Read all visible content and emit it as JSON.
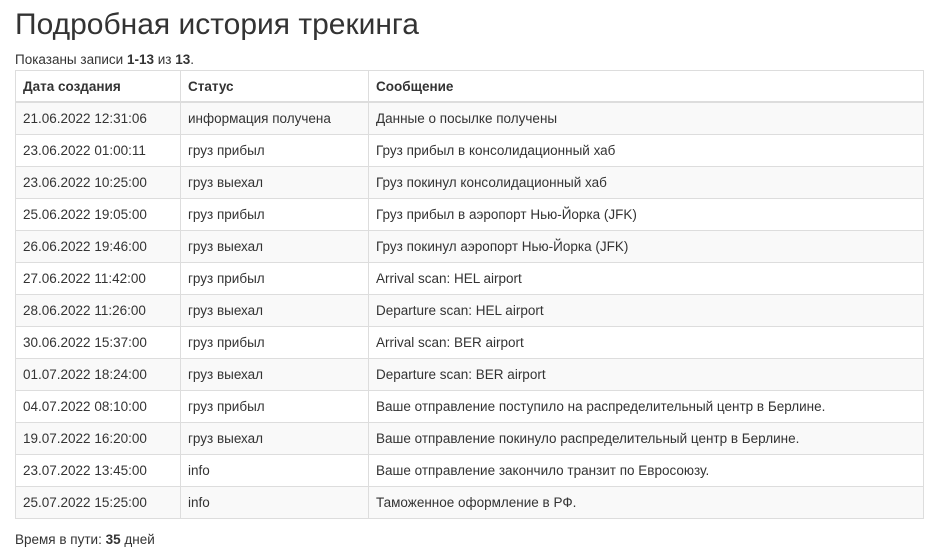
{
  "title": "Подробная история трекинга",
  "summary": {
    "prefix": "Показаны записи ",
    "range": "1-13",
    "of": " из ",
    "total": "13",
    "suffix": "."
  },
  "columns": [
    "Дата создания",
    "Статус",
    "Сообщение"
  ],
  "rows": [
    [
      "21.06.2022 12:31:06",
      "информация получена",
      "Данные о посылке получены"
    ],
    [
      "23.06.2022 01:00:11",
      "груз прибыл",
      "Груз прибыл в консолидационный хаб"
    ],
    [
      "23.06.2022 10:25:00",
      "груз выехал",
      "Груз покинул консолидационный хаб"
    ],
    [
      "25.06.2022 19:05:00",
      "груз прибыл",
      "Груз прибыл в аэропорт Нью-Йорка (JFK)"
    ],
    [
      "26.06.2022 19:46:00",
      "груз выехал",
      "Груз покинул аэропорт Нью-Йорка (JFK)"
    ],
    [
      "27.06.2022 11:42:00",
      "груз прибыл",
      "Arrival scan: HEL airport"
    ],
    [
      "28.06.2022 11:26:00",
      "груз выехал",
      "Departure scan: HEL airport"
    ],
    [
      "30.06.2022 15:37:00",
      "груз прибыл",
      "Arrival scan: BER airport"
    ],
    [
      "01.07.2022 18:24:00",
      "груз выехал",
      "Departure scan: BER airport"
    ],
    [
      "04.07.2022 08:10:00",
      "груз прибыл",
      "Ваше отправление поступило на распределительный центр в Берлине."
    ],
    [
      "19.07.2022 16:20:00",
      "груз выехал",
      "Ваше отправление покинуло распределительный центр в Берлине."
    ],
    [
      "23.07.2022 13:45:00",
      "info",
      "Ваше отправление закончило транзит по Евросоюзу."
    ],
    [
      "25.07.2022 15:25:00",
      "info",
      "Таможенное оформление в РФ."
    ]
  ],
  "footer": {
    "label": "Время в пути: ",
    "days": "35",
    "unit": " дней"
  }
}
